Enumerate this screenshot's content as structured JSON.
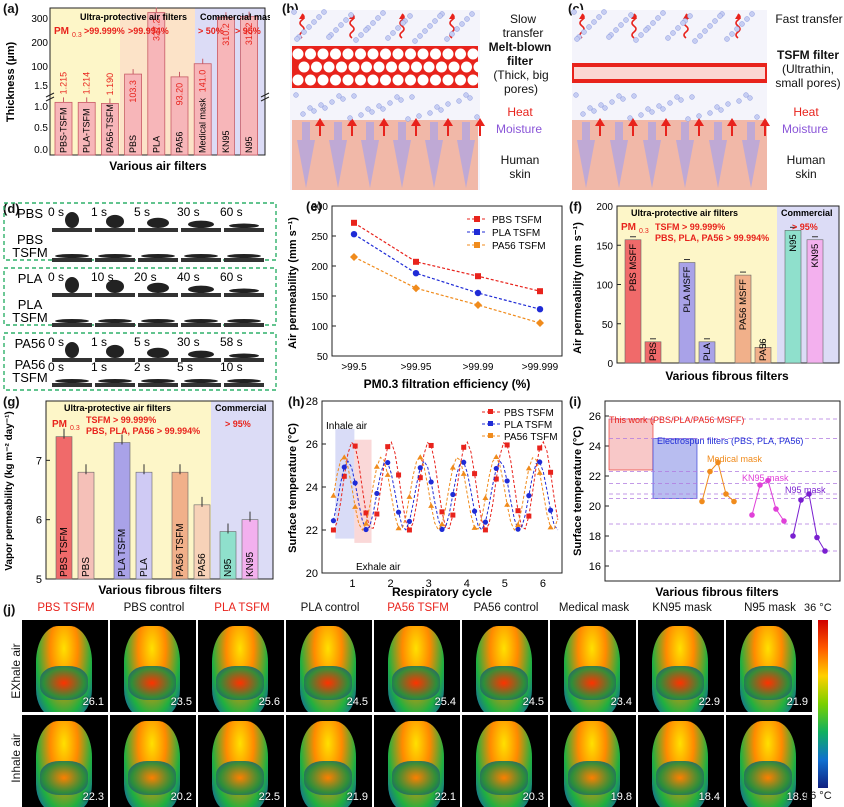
{
  "panels": {
    "a": {
      "label": "(a)",
      "group1": "Ultra-protective air filters",
      "group2": "Commercial masks",
      "pm_label": "PM",
      "pm_sub": "0.3",
      "pct1": ">99.999%",
      "pct2": ">99.994%",
      "pct3": "> 50%",
      "pct4": "> 95%",
      "ylabel": "Thickness (µm)",
      "xlabel": "Various air filters",
      "yticks_low": [
        "0.0",
        "0.5",
        "1.0",
        "1.5"
      ],
      "yticks_high": [
        "100",
        "200",
        "300"
      ]
    },
    "b": {
      "label": "(b)",
      "speed": "Slow transfer",
      "filter": "Melt-blown filter",
      "desc": "(Thick, big pores)",
      "heat": "Heat",
      "moisture": "Moisture",
      "skin": "Human skin"
    },
    "c": {
      "label": "(c)",
      "speed": "Fast transfer",
      "filter": "TSFM filter",
      "desc": "(Ultrathin, small pores)",
      "heat": "Heat",
      "moisture": "Moisture",
      "skin": "Human skin"
    },
    "d": {
      "label": "(d)",
      "rows": [
        {
          "name": "PBS",
          "times": [
            "0 s",
            "1 s",
            "5 s",
            "30 s",
            "60 s"
          ]
        },
        {
          "name": "PBS TSFM",
          "times": []
        },
        {
          "name": "PLA",
          "times": [
            "0 s",
            "10 s",
            "20 s",
            "40 s",
            "60 s"
          ]
        },
        {
          "name": "PLA TSFM",
          "times": []
        },
        {
          "name": "PA56",
          "times": [
            "0 s",
            "1 s",
            "5 s",
            "30 s",
            "58 s"
          ]
        },
        {
          "name": "PA56 TSFM",
          "times": [
            "0 s",
            "1 s",
            "2 s",
            "5 s",
            "10 s"
          ]
        }
      ]
    },
    "e": {
      "label": "(e)",
      "ylabel": "Air permeability (mm s⁻¹)",
      "xlabel": "PM0.3 filtration efficiency (%)"
    },
    "f": {
      "label": "(f)",
      "group1": "Ultra-protective air filters",
      "group2": "Commercial",
      "pm_label": "PM",
      "pm_sub": "0.3",
      "line1": "TSFM > 99.999%",
      "line2": "PBS, PLA, PA56 > 99.994%",
      "pct2": "> 95%",
      "ylabel": "Air permeability (mm s⁻¹)",
      "xlabel": "Various fibrous filters"
    },
    "g": {
      "label": "(g)",
      "group1": "Ultra-protective air filters",
      "group2": "Commercial",
      "pm_label": "PM",
      "pm_sub": "0.3",
      "line1": "TSFM > 99.999%",
      "line2": "PBS, PLA, PA56 > 99.994%",
      "pct2": "> 95%",
      "ylabel": "Vapor permeability (kg m⁻² day⁻¹)",
      "xlabel": "Various fibrous filters"
    },
    "h": {
      "label": "(h)",
      "ylabel": "Surface temperature (°C)",
      "xlabel": "Respiratory cycle",
      "inhale": "Inhale air",
      "exhale": "Exhale air"
    },
    "i": {
      "label": "(i)",
      "ylabel": "Surface temperature (°C)",
      "xlabel": "Various fibrous filters",
      "this_work": "This work (PBS/PLA/PA56 MSFF)",
      "electro": "Electrospun filters (PBS, PLA, PA56)",
      "medical": "Medical mask",
      "kn95": "KN95 mask",
      "n95": "N95 mask"
    },
    "j": {
      "label": "(j)",
      "row1": "EXhale air",
      "row2": "Inhale air",
      "scale_top": "36 °C",
      "scale_bot": "16 °C",
      "columns": [
        {
          "name": "PBS TSFM",
          "red": true,
          "exhale": "26.1",
          "inhale": "22.3"
        },
        {
          "name": "PBS control",
          "red": false,
          "exhale": "23.5",
          "inhale": "20.2"
        },
        {
          "name": "PLA TSFM",
          "red": true,
          "exhale": "25.6",
          "inhale": "22.5"
        },
        {
          "name": "PLA control",
          "red": false,
          "exhale": "24.5",
          "inhale": "21.9"
        },
        {
          "name": "PA56 TSFM",
          "red": true,
          "exhale": "25.4",
          "inhale": "22.1"
        },
        {
          "name": "PA56 control",
          "red": false,
          "exhale": "24.5",
          "inhale": "20.3"
        },
        {
          "name": "Medical mask",
          "red": false,
          "exhale": "23.4",
          "inhale": "19.8"
        },
        {
          "name": "KN95 mask",
          "red": false,
          "exhale": "22.9",
          "inhale": "18.4"
        },
        {
          "name": "N95 mask",
          "red": false,
          "exhale": "21.9",
          "inhale": "18.9"
        }
      ]
    }
  },
  "chart_data": [
    {
      "id": "a",
      "type": "bar",
      "categories": [
        "PBS-TSFM",
        "PLA-TSFM",
        "PA56-TSFM",
        "PBS",
        "PLA",
        "PA56",
        "Medical mask",
        "KN95",
        "N95"
      ],
      "values": [
        1.215,
        1.214,
        1.19,
        103.3,
        327.2,
        93.2,
        141.0,
        310.2,
        312.2
      ],
      "value_labels": [
        "1.215",
        "1.214",
        "1.190",
        "103.3",
        "327.2",
        "93.20",
        "141.0",
        "310.2",
        "312.2"
      ],
      "ylabel": "Thickness (µm)",
      "xlabel": "Various air filters",
      "colors": {
        "tsfm": "#f7b6b9",
        "control": "#f7b6b9",
        "commercial": "#f7b6b9",
        "bg1": "#fdf6c8",
        "bg2": "#fce3c8",
        "bg3": "#dcdcf6"
      }
    },
    {
      "id": "e",
      "type": "line",
      "x": [
        ">99.5",
        ">99.95",
        ">99.99",
        ">99.999"
      ],
      "series": [
        {
          "name": "PBS TSFM",
          "values": [
            272,
            207,
            183,
            158
          ],
          "color": "#e8231c",
          "marker": "square"
        },
        {
          "name": "PLA TSFM",
          "values": [
            253,
            188,
            155,
            128
          ],
          "color": "#1f2bd6",
          "marker": "circle"
        },
        {
          "name": "PA56 TSFM",
          "values": [
            215,
            163,
            135,
            105
          ],
          "color": "#f08b1c",
          "marker": "diamond"
        }
      ],
      "ylim": [
        50,
        300
      ],
      "yticks": [
        50,
        100,
        150,
        200,
        250,
        300
      ],
      "ylabel": "Air permeability (mm s⁻¹)",
      "xlabel": "PM0.3 filtration efficiency (%)"
    },
    {
      "id": "f",
      "type": "bar",
      "categories": [
        "PBS MSFF",
        "PBS",
        "PLA MSFF",
        "PLA",
        "PA56 MSFF",
        "PA56",
        "N95",
        "KN95"
      ],
      "values": [
        157,
        27,
        128,
        27,
        112,
        20,
        169,
        157
      ],
      "ylim": [
        0,
        200
      ],
      "yticks": [
        0,
        50,
        100,
        150,
        200
      ],
      "ylabel": "Air permeability (mm s⁻¹)",
      "xlabel": "Various fibrous filters"
    },
    {
      "id": "g",
      "type": "bar",
      "categories": [
        "PBS TSFM",
        "PBS",
        "PLA TSFM",
        "PLA",
        "PA56 TSFM",
        "PA56",
        "N95",
        "KN95"
      ],
      "values": [
        7.4,
        6.8,
        7.3,
        6.8,
        6.8,
        6.25,
        5.8,
        6.0
      ],
      "ylim": [
        5,
        8
      ],
      "yticks": [
        5,
        6,
        7
      ],
      "ylabel": "Vapor permeability (kg m⁻² day⁻¹)",
      "xlabel": "Various fibrous filters"
    },
    {
      "id": "h",
      "type": "line",
      "series": [
        {
          "name": "PBS TSFM",
          "color": "#e8231c",
          "marker": "square"
        },
        {
          "name": "PLA TSFM",
          "color": "#1f2bd6",
          "marker": "circle"
        },
        {
          "name": "PA56 TSFM",
          "color": "#f08b1c",
          "marker": "triangle"
        }
      ],
      "xlim": [
        0.2,
        6.5
      ],
      "ylim": [
        20,
        28
      ],
      "yticks": [
        20,
        22,
        24,
        26,
        28
      ],
      "xticks": [
        1,
        2,
        3,
        4,
        5,
        6
      ],
      "ylabel": "Surface temperature (°C)",
      "xlabel": "Respiratory cycle"
    },
    {
      "id": "i",
      "type": "scatter",
      "ylim": [
        15,
        27
      ],
      "yticks": [
        16,
        18,
        20,
        22,
        24,
        26
      ],
      "series": [
        {
          "name": "Medical mask",
          "color": "#f08b1c",
          "values": [
            20.3,
            22.3,
            22.9,
            20.8,
            20.3
          ]
        },
        {
          "name": "KN95 mask",
          "color": "#e040d8",
          "values": [
            19.4,
            21.4,
            21.7,
            19.8,
            19.0
          ]
        },
        {
          "name": "N95 mask",
          "color": "#7a1fd0",
          "values": [
            18.0,
            20.4,
            20.8,
            17.9,
            17.0
          ]
        }
      ],
      "ylabel": "Surface temperature (°C)",
      "xlabel": "Various fibrous filters"
    }
  ]
}
